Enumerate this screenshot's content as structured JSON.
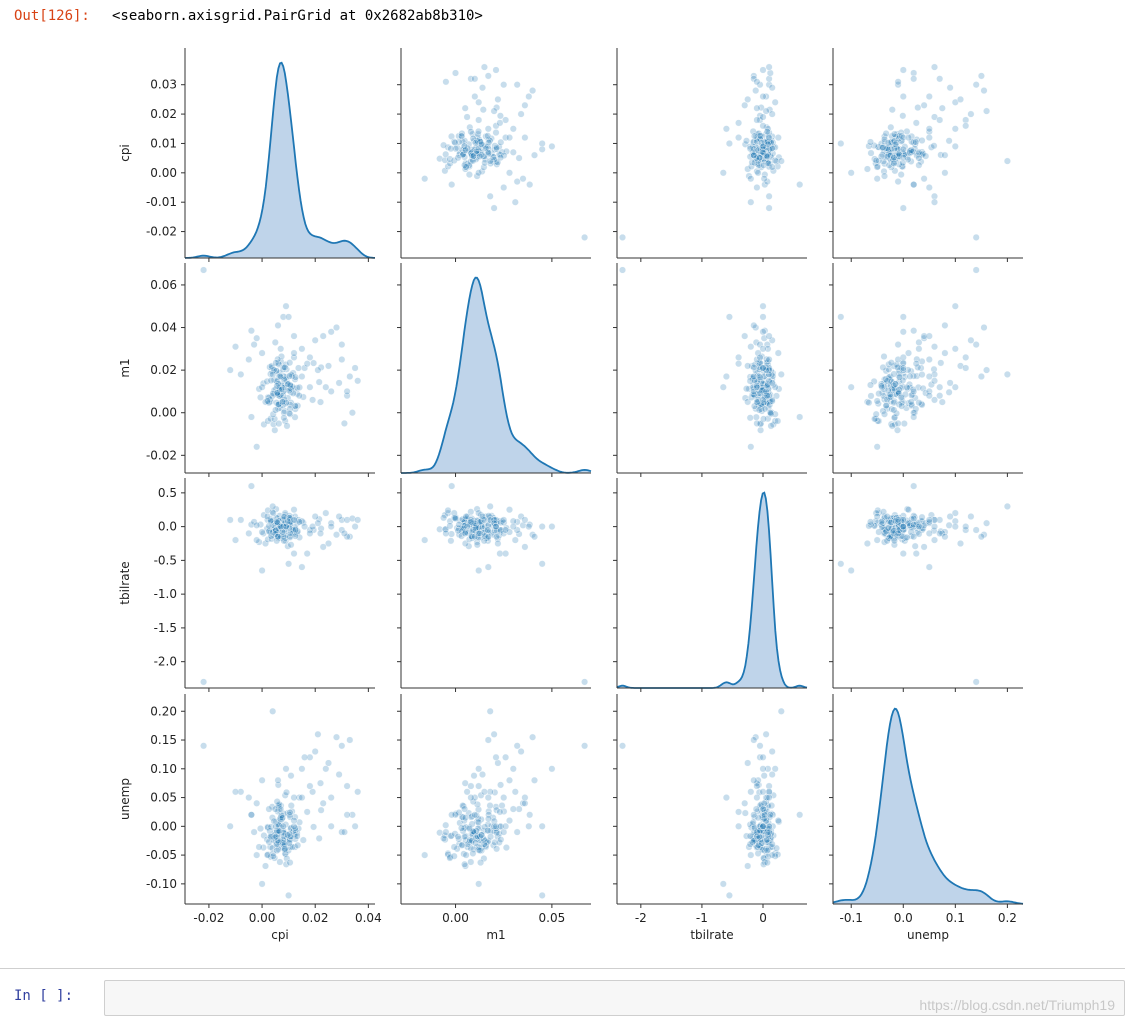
{
  "notebook": {
    "out_prompt": "Out[126]:",
    "out_text": "<seaborn.axisgrid.PairGrid at 0x2682ab8b310>",
    "in_prompt": "In  [  ]:",
    "watermark": "https://blog.csdn.net/Triumph19"
  },
  "colors": {
    "accent": "#1f77b4",
    "fill": "#a9c6e3",
    "axis": "#333333"
  },
  "chart_data": {
    "type": "pairgrid",
    "variables": [
      "cpi",
      "m1",
      "tbilrate",
      "unemp"
    ],
    "axes": {
      "cpi": {
        "lim": [
          -0.029,
          0.0425
        ],
        "ticks": [
          -0.02,
          -0.01,
          0.0,
          0.01,
          0.02,
          0.03
        ],
        "xticks": [
          -0.02,
          0.0,
          0.02,
          0.04
        ],
        "yticklabels": [
          "-0.02",
          "-0.01",
          "0.00",
          "0.01",
          "0.02",
          "0.03"
        ],
        "xticklabels": [
          "-0.02",
          "0.00",
          "0.02",
          "0.04"
        ]
      },
      "m1": {
        "lim": [
          -0.0283,
          0.0703
        ],
        "ticks": [
          -0.02,
          0.0,
          0.02,
          0.04,
          0.06
        ],
        "xticks": [
          0.0,
          0.05
        ],
        "yticklabels": [
          "-0.02",
          "0.00",
          "0.02",
          "0.04",
          "0.06"
        ],
        "xticklabels": [
          "0.00",
          "0.05"
        ]
      },
      "tbilrate": {
        "lim": [
          -2.39,
          0.72
        ],
        "ticks": [
          -2.0,
          -1.5,
          -1.0,
          -0.5,
          0.0,
          0.5
        ],
        "xticks": [
          -2,
          -1,
          0
        ],
        "yticklabels": [
          "-2.0",
          "-1.5",
          "-1.0",
          "-0.5",
          "0.0",
          "0.5"
        ],
        "xticklabels": [
          "-2",
          "-1",
          "0"
        ]
      },
      "unemp": {
        "lim": [
          -0.135,
          0.23
        ],
        "ticks": [
          -0.1,
          -0.05,
          0.0,
          0.05,
          0.1,
          0.15,
          0.2
        ],
        "xticks": [
          -0.1,
          0.0,
          0.1,
          0.2
        ],
        "yticklabels": [
          "-0.10",
          "-0.05",
          "0.00",
          "0.05",
          "0.10",
          "0.15",
          "0.20"
        ],
        "xticklabels": [
          "-0.1",
          "0.0",
          "0.1",
          "0.2"
        ]
      }
    },
    "points": [
      [
        0.0059,
        0.0084,
        0.12,
        -0.013
      ],
      [
        0.0109,
        0.0096,
        0.02,
        0.088
      ],
      [
        0.0087,
        0.0132,
        0.17,
        0.054
      ],
      [
        0.0065,
        0.0079,
        -0.14,
        -0.025
      ],
      [
        0.0033,
        0.0053,
        0.11,
        -0.017
      ],
      [
        0.0097,
        0.0069,
        -0.29,
        0.023
      ],
      [
        0.0021,
        0.0051,
        0.1,
        -0.001
      ],
      [
        0.0039,
        0.0195,
        0.01,
        0.015
      ],
      [
        0.0124,
        0.0157,
        0.15,
        -0.036
      ],
      [
        0.0117,
        0.0186,
        -0.09,
        -0.008
      ],
      [
        0.0038,
        0.021,
        0.08,
        0.034
      ],
      [
        0.0087,
        -0.0039,
        0.2,
        -0.047
      ],
      [
        0.0222,
        0.0213,
        -0.03,
        0.028
      ],
      [
        0.0013,
        0.0051,
        -0.25,
        -0.069
      ],
      [
        0.0084,
        0.0105,
        -0.06,
        -0.021
      ],
      [
        0.0061,
        0.0019,
        -0.12,
        -0.031
      ],
      [
        0.0053,
        0.0112,
        0.26,
        0.008
      ],
      [
        0.0215,
        0.0144,
        0.11,
        -0.021
      ],
      [
        0.0067,
        0.0022,
        0.09,
        0.006
      ],
      [
        0.0022,
        0.0072,
        -0.19,
        -0.002
      ],
      [
        0.0061,
        0.0234,
        -0.07,
        0.072
      ],
      [
        0.0072,
        0.0086,
        0.03,
        0.018
      ],
      [
        0.0086,
        0.0008,
        -0.02,
        -0.039
      ],
      [
        0.0066,
        0.0187,
        0.16,
        -0.0
      ],
      [
        0.0088,
        0.0043,
        0.06,
        -0.048
      ],
      [
        0.0082,
        0.0001,
        0.14,
        0.022
      ],
      [
        0.0069,
        0.0125,
        -0.06,
        -0.024
      ],
      [
        0.0093,
        0.0147,
        0.02,
        -0.056
      ],
      [
        0.0054,
        0.0197,
        -0.12,
        -0.033
      ],
      [
        0.0089,
        0.0168,
        -0.21,
        0.003
      ],
      [
        0.0071,
        0.0241,
        0.08,
        0.036
      ],
      [
        0.0132,
        0.0089,
        0.05,
        -0.012
      ],
      [
        0.0048,
        -0.0082,
        -0.04,
        -0.011
      ],
      [
        0.0105,
        0.013,
        -0.16,
        -0.025
      ],
      [
        0.0113,
        0.0172,
        -0.09,
        0.026
      ],
      [
        0.0124,
        -0.0021,
        -0.11,
        -0.016
      ],
      [
        0.0005,
        0.0138,
        -0.1,
        -0.037
      ],
      [
        0.0073,
        0.0264,
        -0.02,
        -0.037
      ],
      [
        0.0069,
        0.0045,
        0.05,
        0.01
      ],
      [
        0.0194,
        0.0233,
        -0.05,
        -0.001
      ],
      [
        0.0054,
        0.0196,
        0.13,
        -0.008
      ],
      [
        0.0043,
        -0.0054,
        -0.04,
        -0.023
      ],
      [
        0.0046,
        0.0154,
        -0.13,
        -0.025
      ],
      [
        0.0092,
        0.0204,
        -0.06,
        0.059
      ],
      [
        0.0072,
        0.0124,
        -0.0,
        -0.002
      ],
      [
        0.0063,
        0.017,
        0.03,
        -0.025
      ],
      [
        -0.0011,
        0.0112,
        -0.23,
        -0.036
      ],
      [
        0.0079,
        0.0081,
        0.06,
        -0.028
      ],
      [
        0.0088,
        0.016,
        -0.17,
        -0.028
      ],
      [
        0.0064,
        0.0042,
        -0.02,
        0.035
      ],
      [
        0.0081,
        0.0171,
        -0.06,
        -0.008
      ],
      [
        0.0107,
        0.0116,
        0.08,
        -0.004
      ],
      [
        0.0071,
        0.0167,
        -0.17,
        -0.027
      ],
      [
        0.0061,
        0.0086,
        -0.17,
        0.004
      ],
      [
        0.0007,
        -0.0055,
        0.17,
        -0.016
      ],
      [
        0.0072,
        0.0133,
        -0.0,
        0.012
      ],
      [
        0.0105,
        0.0112,
        -0.15,
        -0.022
      ],
      [
        0.0022,
        -0.0039,
        0.24,
        -0.049
      ],
      [
        0.011,
        0.0179,
        0.14,
        0.036
      ],
      [
        0.0094,
        -0.0062,
        0.13,
        -0.021
      ],
      [
        0.0078,
        0.0035,
        -0.03,
        -0.032
      ],
      [
        0.0032,
        -0.0028,
        0.08,
        -0.053
      ],
      [
        0.0063,
        -0.0051,
        -0.04,
        0.002
      ],
      [
        0.0079,
        0.0053,
        0.12,
        -0.024
      ],
      [
        0.0124,
        0.0033,
        -0.01,
        0.016
      ],
      [
        0.0099,
        0.0135,
        0.03,
        -0.042
      ],
      [
        0.0029,
        0.0214,
        -0.06,
        -0.008
      ],
      [
        0.0079,
        0.0204,
        0.1,
        -0.028
      ],
      [
        0.0103,
        0.0172,
        0.16,
        0.02
      ],
      [
        0.0125,
        0.0017,
        -0.03,
        -0.022
      ],
      [
        0.0075,
        0.0119,
        0.05,
        0.013
      ],
      [
        0.0036,
        0.0219,
        -0.18,
        -0.018
      ],
      [
        0.0061,
        0.0093,
        0.04,
        -0.011
      ],
      [
        0.0054,
        0.0047,
        -0.09,
        -0.018
      ],
      [
        0.0083,
        0.0157,
        -0.05,
        -0.034
      ],
      [
        0.0063,
        0.0227,
        0.08,
        -0.028
      ],
      [
        0.0065,
        0.0119,
        0.03,
        0.029
      ],
      [
        0.0061,
        0.0037,
        -0.05,
        0.036
      ],
      [
        0.0109,
        0.0047,
        0.07,
        -0.003
      ],
      [
        0.0045,
        0.0201,
        0.05,
        0.009
      ],
      [
        0.0062,
        0.0095,
        0.09,
        -0.04
      ],
      [
        0.0089,
        0.0226,
        -0.13,
        -0.013
      ],
      [
        0.0122,
        0.0113,
        0.09,
        -0.014
      ],
      [
        0.0019,
        0.0147,
        -0.03,
        -0.023
      ],
      [
        0.0046,
        0.0088,
        -0.02,
        -0.015
      ],
      [
        0.0132,
        0.0117,
        -0.09,
        -0.017
      ],
      [
        0.0046,
        0.0106,
        -0.07,
        -0.02
      ],
      [
        0.0079,
        0.0099,
        0.02,
        -0.01
      ],
      [
        0.0106,
        -0.0007,
        0.13,
        -0.036
      ],
      [
        0.0114,
        0.0122,
        -0.04,
        -0.036
      ],
      [
        0.0106,
        0.0037,
        0.11,
        0.016
      ],
      [
        0.0065,
        0.0114,
        -0.03,
        0.038
      ],
      [
        0.0031,
        0.0062,
        -0.09,
        -0.036
      ],
      [
        0.0057,
        0.0146,
        -0.09,
        -0.008
      ],
      [
        0.0039,
        0.0079,
        0.22,
        -0.038
      ],
      [
        0.0047,
        -0.0029,
        0.01,
        -0.055
      ],
      [
        0.0055,
        0.0149,
        -0.21,
        -0.031
      ],
      [
        0.0061,
        0.0136,
        -0.0,
        -0.015
      ],
      [
        0.0026,
        0.0071,
        -0.07,
        -0.027
      ],
      [
        0.0071,
        0.0082,
        -0.14,
        0.016
      ],
      [
        0.0081,
        0.0213,
        -0.15,
        -0.011
      ],
      [
        0.0034,
        0.0152,
        -0.14,
        -0.001
      ],
      [
        0.0067,
        0.0079,
        0.03,
        -0.062
      ],
      [
        0.0141,
        0.0119,
        -0.16,
        0.007
      ],
      [
        0.0086,
        0.0119,
        -0.01,
        -0.041
      ],
      [
        0.0104,
        0.0235,
        0.06,
        -0.023
      ],
      [
        0.0041,
        0.009,
        -0.08,
        -0.047
      ],
      [
        0.0042,
        -0.0007,
        0.2,
        -0.052
      ],
      [
        0.0109,
        0.0113,
        -0.27,
        -0.017
      ],
      [
        0.0026,
        0.0047,
        0.01,
        0.03
      ],
      [
        0.0084,
        0.0062,
        0.15,
        -0.031
      ],
      [
        0.0082,
        -0.0024,
        -0.21,
        -0.017
      ],
      [
        0.0068,
        0.0171,
        0.02,
        0.013
      ],
      [
        0.0032,
        0.0182,
        0.09,
        -0.018
      ],
      [
        0.0155,
        0.0074,
        0.06,
        -0.024
      ],
      [
        0.0105,
        0.0018,
        0.03,
        0.024
      ],
      [
        0.0134,
        0.0033,
        -0.07,
        -0.033
      ],
      [
        0.0091,
        0.0047,
        0.01,
        -0.066
      ],
      [
        0.0057,
        0.0095,
        0.02,
        -0.009
      ],
      [
        0.0066,
        0.0108,
        0.01,
        -0.008
      ],
      [
        0.0137,
        0.021,
        0.1,
        -0.004
      ],
      [
        0.0059,
        0.0085,
        -0.15,
        -0.025
      ],
      [
        0.0073,
        0.0109,
        -0.01,
        0.019
      ],
      [
        0.0057,
        0.0092,
        0.05,
        0.043
      ],
      [
        0.0105,
        0.013,
        0.07,
        -0.063
      ],
      [
        0.0086,
        0.0213,
        0.05,
        -0.039
      ],
      [
        0.0062,
        0.0039,
        -0.03,
        -0.008
      ],
      [
        0.0117,
        0.0091,
        -0.05,
        -0.009
      ],
      [
        0.0126,
        0.0167,
        -0.05,
        -0.007
      ],
      [
        0.0107,
        0.0127,
        -0.1,
        -0.018
      ],
      [
        0.0103,
        -0.0003,
        0.13,
        -0.013
      ],
      [
        0.0077,
        0.0051,
        -0.08,
        0.015
      ],
      [
        0.0059,
        0.0251,
        0.06,
        0.026
      ],
      [
        0.0102,
        0.0104,
        -0.02,
        -0.029
      ],
      [
        0.0125,
        0.0031,
        -0.14,
        -0.003
      ],
      [
        0.0052,
        0.0234,
        -0.05,
        0.0
      ],
      [
        0.0097,
        0.0135,
        0.08,
        -0.015
      ],
      [
        -0.0006,
        0.0072,
        0.03,
        -0.004
      ],
      [
        0.0056,
        0.0126,
        0.07,
        -0.042
      ],
      [
        0.0051,
        0.0013,
        -0.06,
        -0.018
      ],
      [
        -0.008,
        0.018,
        0.1,
        0.06
      ],
      [
        -0.005,
        0.025,
        -0.1,
        0.05
      ],
      [
        -0.004,
        0.0385,
        0.03,
        0.02
      ],
      [
        -0.003,
        0.032,
        0.07,
        -0.01
      ],
      [
        -0.002,
        0.035,
        0.02,
        0.04
      ],
      [
        0.0,
        0.028,
        -0.08,
        0.08
      ],
      [
        0.002,
        0.0055,
        0.15,
        -0.05
      ],
      [
        0.005,
        0.033,
        -0.11,
        0.03
      ],
      [
        0.008,
        0.045,
        0.0,
        0.0
      ],
      [
        -0.01,
        0.031,
        -0.2,
        0.06
      ],
      [
        -0.012,
        0.02,
        0.1,
        0.0
      ],
      [
        0.015,
        0.03,
        0.08,
        0.1
      ],
      [
        0.018,
        0.026,
        -0.05,
        0.12
      ],
      [
        0.02,
        0.034,
        0.15,
        0.13
      ],
      [
        0.022,
        0.005,
        -0.1,
        0.075
      ],
      [
        0.024,
        0.012,
        0.2,
        0.1
      ],
      [
        0.026,
        0.01,
        0.05,
        0.05
      ],
      [
        0.028,
        0.04,
        -0.12,
        0.155
      ],
      [
        0.03,
        0.025,
        0.1,
        -0.01
      ],
      [
        0.032,
        0.008,
        0.1,
        0.07
      ],
      [
        0.034,
        0.0,
        0.12,
        0.02
      ],
      [
        0.036,
        0.015,
        0.1,
        0.06
      ],
      [
        0.026,
        0.038,
        0.0,
        0.0
      ],
      [
        0.033,
        0.017,
        -0.15,
        0.15
      ],
      [
        0.029,
        0.014,
        0.15,
        0.09
      ],
      [
        0.021,
        0.02,
        0.05,
        0.16
      ],
      [
        0.025,
        0.022,
        -0.25,
        0.11
      ],
      [
        0.03,
        0.032,
        -0.05,
        0.14
      ],
      [
        0.032,
        0.01,
        -0.15,
        0.02
      ],
      [
        0.019,
        0.006,
        0.0,
        0.06
      ],
      [
        0.016,
        0.021,
        0.0,
        0.12
      ],
      [
        0.023,
        0.036,
        -0.3,
        0.04
      ],
      [
        0.014,
        0.008,
        0.07,
        0.05
      ],
      [
        0.006,
        0.041,
        -0.15,
        0.08
      ],
      [
        0.009,
        0.05,
        0.0,
        0.1
      ],
      [
        0.012,
        0.036,
        0.1,
        0.05
      ],
      [
        0.035,
        0.021,
        0.0,
        0.0
      ],
      [
        0.018,
        0.012,
        -0.1,
        0.07
      ],
      [
        0.017,
        0.023,
        -0.4,
        0.025
      ],
      [
        0.015,
        0.017,
        -0.6,
        0.05
      ],
      [
        0.012,
        0.026,
        -0.4,
        0.0
      ],
      [
        0.0,
        0.012,
        -0.65,
        -0.1
      ],
      [
        -0.004,
        -0.002,
        0.6,
        0.02
      ],
      [
        0.01,
        0.045,
        -0.55,
        -0.12
      ],
      [
        0.004,
        0.018,
        0.3,
        0.2
      ],
      [
        -0.002,
        -0.016,
        -0.2,
        -0.05
      ],
      [
        0.012,
        0.028,
        0.25,
        0.01
      ],
      [
        0.007,
        0.03,
        0.0,
        0.03
      ],
      [
        0.031,
        -0.005,
        -0.1,
        -0.01
      ],
      [
        -0.022,
        0.067,
        -2.3,
        0.14
      ]
    ],
    "layout": "4x4 grid; diagonal = KDE (shaded), off-diagonal = scatter"
  }
}
